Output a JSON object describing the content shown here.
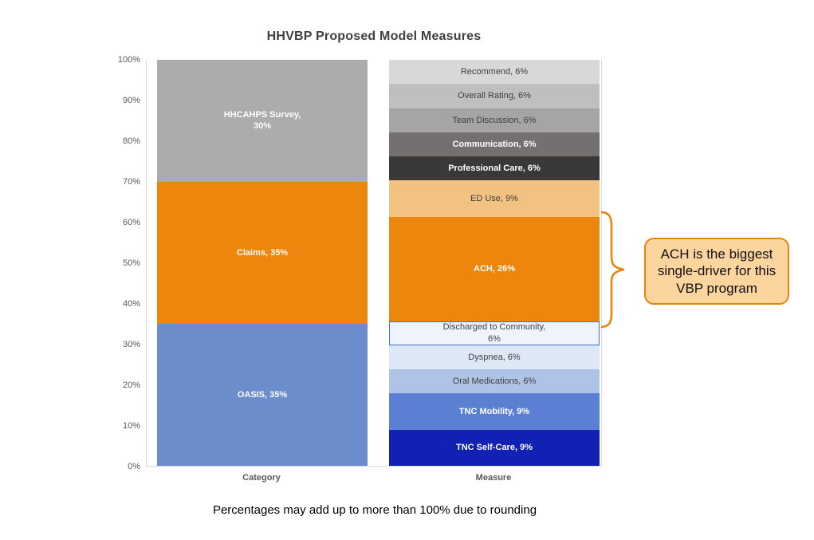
{
  "title": "HHVBP Proposed Model Measures",
  "footnote": "Percentages may add up to more than 100% due to rounding",
  "callout": {
    "text": "ACH is the biggest single-driver for this VBP program",
    "fill": "#FCD49E",
    "border": "#E8830D",
    "bracket_color": "#E8830D"
  },
  "y_axis": {
    "ticks": [
      "100%",
      "90%",
      "80%",
      "70%",
      "60%",
      "50%",
      "40%",
      "30%",
      "20%",
      "10%",
      "0%"
    ]
  },
  "chart_data": {
    "type": "bar",
    "variant": "100-percent-stacked-column",
    "title": "HHVBP Proposed Model Measures",
    "xlabel": "",
    "ylabel": "",
    "ylim": [
      0,
      100
    ],
    "grid": false,
    "legend": "none",
    "categories": [
      "Category",
      "Measure"
    ],
    "bars": [
      {
        "category": "Category",
        "total": 100,
        "segments": [
          {
            "name": "OASIS",
            "value": 35,
            "lines": [
              "OASIS, 35%"
            ],
            "color": "#6B8DCB",
            "text": "white"
          },
          {
            "name": "Claims",
            "value": 35,
            "lines": [
              "Claims, 35%"
            ],
            "color": "#ED860D",
            "text": "white"
          },
          {
            "name": "HHCAHPS Survey",
            "value": 30,
            "lines": [
              "HHCAHPS Survey,",
              "30%"
            ],
            "color": "#ACACAC",
            "text": "white"
          }
        ]
      },
      {
        "category": "Measure",
        "total": 101,
        "segments": [
          {
            "name": "TNC Self-Care",
            "value": 9,
            "lines": [
              "TNC Self-Care, 9%"
            ],
            "color": "#1021B3",
            "text": "white"
          },
          {
            "name": "TNC Mobility",
            "value": 9,
            "lines": [
              "TNC Mobility, 9%"
            ],
            "color": "#5A7FD3",
            "text": "white"
          },
          {
            "name": "Oral Medications",
            "value": 6,
            "lines": [
              "Oral Medications, 6%"
            ],
            "color": "#AFC3E7",
            "text": "dark"
          },
          {
            "name": "Dyspnea",
            "value": 6,
            "lines": [
              "Dyspnea, 6%"
            ],
            "color": "#DDE7F5",
            "text": "dark"
          },
          {
            "name": "Discharged to Community",
            "value": 6,
            "lines": [
              "Discharged to Community,",
              "6%"
            ],
            "color": "#EFF3FB",
            "border": "#4472C4",
            "text": "dark"
          },
          {
            "name": "ACH",
            "value": 26,
            "lines": [
              "ACH, 26%"
            ],
            "color": "#ED860D",
            "text": "white"
          },
          {
            "name": "ED Use",
            "value": 9,
            "lines": [
              "ED Use, 9%"
            ],
            "color": "#F2C282",
            "text": "dark"
          },
          {
            "name": "Professional Care",
            "value": 6,
            "lines": [
              "Professional Care, 6%"
            ],
            "color": "#3B3838",
            "text": "white"
          },
          {
            "name": "Communication",
            "value": 6,
            "lines": [
              "Communication, 6%"
            ],
            "color": "#757070",
            "text": "white"
          },
          {
            "name": "Team Discussion",
            "value": 6,
            "lines": [
              "Team Discussion, 6%"
            ],
            "color": "#A7A4A4",
            "text": "dark"
          },
          {
            "name": "Overall Rating",
            "value": 6,
            "lines": [
              "Overall Rating, 6%"
            ],
            "color": "#BFBFBF",
            "text": "dark"
          },
          {
            "name": "Recommend",
            "value": 6,
            "lines": [
              "Recommend, 6%"
            ],
            "color": "#D8D8D8",
            "text": "dark"
          }
        ]
      }
    ]
  }
}
